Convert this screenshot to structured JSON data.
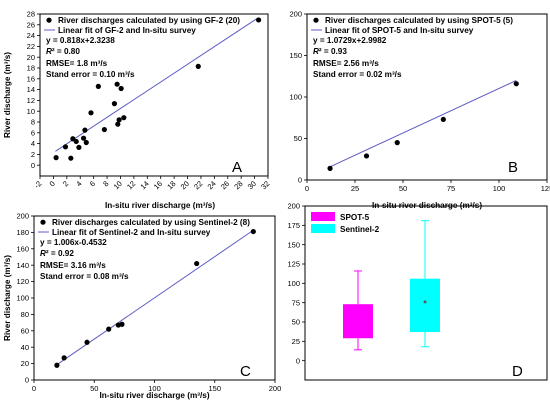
{
  "colors": {
    "fit_line": "#5c5cc4",
    "points": "#000000",
    "spot5_box": "#ff00ff",
    "sentinel2_box": "#00ffff"
  },
  "chart_data": [
    {
      "panel": "A",
      "type": "scatter",
      "xlabel": "In-situ river discharge (m³/s)",
      "ylabel": "River discharge  (m³/s)",
      "xlim": [
        -2,
        32
      ],
      "ylim": [
        -2,
        28
      ],
      "xticks": [
        -2,
        0,
        2,
        4,
        6,
        8,
        10,
        12,
        14,
        16,
        18,
        20,
        22,
        24,
        26,
        28,
        30,
        32
      ],
      "yticks": [
        0,
        2,
        4,
        6,
        8,
        10,
        12,
        14,
        16,
        18,
        20,
        22,
        24,
        26,
        28
      ],
      "legend": [
        "River discharges calculated by using GF-2 (20)",
        "Linear fit of GF-2 and In-situ survey"
      ],
      "stats": [
        "y = 0.818x+2.3238",
        "R² = 0.80",
        "RMSE= 1.8 m³/s",
        "Stand error = 0.10 m³/s"
      ],
      "fit": {
        "slope": 0.818,
        "intercept": 2.3238,
        "x_range": [
          0.3,
          30.5
        ]
      },
      "points": [
        [
          0.4,
          1.4
        ],
        [
          1.8,
          3.4
        ],
        [
          2.6,
          1.3
        ],
        [
          2.9,
          4.9
        ],
        [
          3.4,
          4.4
        ],
        [
          3.8,
          3.3
        ],
        [
          4.5,
          5.0
        ],
        [
          4.7,
          6.5
        ],
        [
          4.9,
          4.2
        ],
        [
          5.6,
          9.7
        ],
        [
          6.7,
          14.6
        ],
        [
          7.6,
          6.6
        ],
        [
          9.1,
          11.4
        ],
        [
          9.5,
          15.0
        ],
        [
          9.6,
          7.6
        ],
        [
          9.8,
          8.4
        ],
        [
          10.1,
          14.2
        ],
        [
          10.5,
          8.8
        ],
        [
          21.6,
          18.3
        ],
        [
          30.6,
          26.9
        ]
      ]
    },
    {
      "panel": "B",
      "type": "scatter",
      "xlabel": "In-situ river discharge (m³/s)",
      "ylabel": "",
      "xlim": [
        0,
        125
      ],
      "ylim": [
        0,
        200
      ],
      "xticks": [
        0,
        25,
        50,
        75,
        100,
        125
      ],
      "yticks": [
        0,
        50,
        100,
        150,
        200
      ],
      "legend": [
        "River discharges calculated by using SPOT-5 (5)",
        "Linear fit of SPOT-5 and In-situ survey"
      ],
      "stats": [
        "y = 1.0729x+2.9982",
        "R² = 0.93",
        "RMSE= 2.56 m³/s",
        "Stand error = 0.02 m³/s"
      ],
      "fit": {
        "slope": 1.0729,
        "intercept": 2.9982,
        "x_range": [
          12,
          109
        ]
      },
      "points": [
        [
          12,
          14
        ],
        [
          31,
          29
        ],
        [
          47,
          45
        ],
        [
          71,
          73
        ],
        [
          109,
          116
        ]
      ]
    },
    {
      "panel": "C",
      "type": "scatter",
      "xlabel": "In-situ river discharge (m³/s)",
      "ylabel": "River discharge  (m³/s)",
      "xlim": [
        0,
        200
      ],
      "ylim": [
        0,
        200
      ],
      "xticks": [
        0,
        50,
        100,
        150,
        200
      ],
      "yticks": [
        0,
        20,
        40,
        60,
        80,
        100,
        120,
        140,
        160,
        180,
        200
      ],
      "legend": [
        "River discharges calculated by using Sentinel-2 (8)",
        "Linear fit of Sentinel-2 and In-situ survey"
      ],
      "stats": [
        "y = 1.006x-0.4532",
        "R² = 0.92",
        "RMSE= 3.16 m³/s",
        "Stand error = 0.08 m³/s"
      ],
      "fit": {
        "slope": 1.006,
        "intercept": -0.4532,
        "x_range": [
          19,
          182
        ]
      },
      "points": [
        [
          19,
          18
        ],
        [
          25,
          27
        ],
        [
          44,
          46
        ],
        [
          62,
          62
        ],
        [
          70,
          67
        ],
        [
          73,
          68
        ],
        [
          135,
          142
        ],
        [
          182,
          181
        ]
      ]
    },
    {
      "panel": "D",
      "type": "box",
      "xlabel": "",
      "ylabel": "",
      "ylim": [
        -25,
        200
      ],
      "yticks": [
        0,
        25,
        50,
        75,
        100,
        125,
        150,
        175,
        200
      ],
      "legend": [
        "SPOT-5",
        "Sentinel-2"
      ],
      "series": [
        {
          "name": "SPOT-5",
          "whisker_low": 14,
          "q1": 29,
          "median": 45,
          "q3": 73,
          "whisker_high": 116
        },
        {
          "name": "Sentinel-2",
          "whisker_low": 18,
          "q1": 37,
          "median": 67,
          "mean": 76,
          "q3": 106,
          "whisker_high": 181
        }
      ]
    }
  ]
}
